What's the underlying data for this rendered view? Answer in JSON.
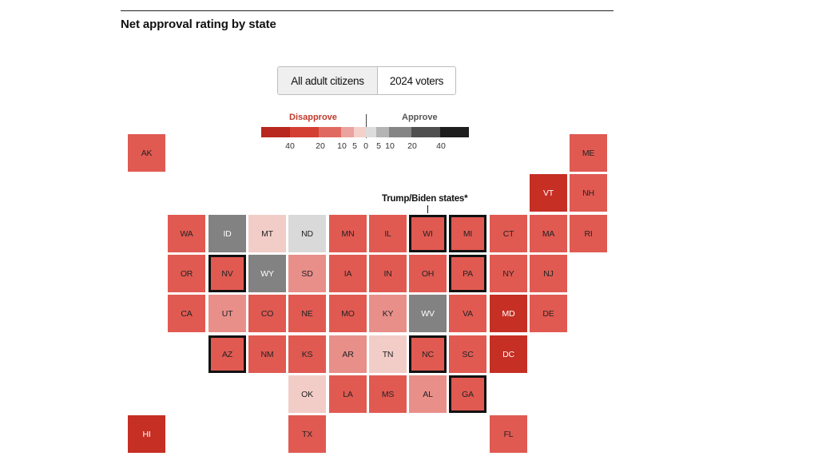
{
  "title": "Net approval rating by state",
  "toggle": {
    "options": [
      "All adult citizens",
      "2024 voters"
    ],
    "selected": "All adult citizens"
  },
  "legend": {
    "disapprove_label": "Disapprove",
    "approve_label": "Approve",
    "bins": [
      "#b8281e",
      "#d43f33",
      "#e06a62",
      "#eba39f",
      "#f4d0cb",
      "#dcdcdc",
      "#b4b4b4",
      "#858585",
      "#4f4f4f",
      "#1e1e1e"
    ],
    "ticks": [
      {
        "label": "40",
        "value": -40
      },
      {
        "label": "20",
        "value": -20
      },
      {
        "label": "10",
        "value": -10
      },
      {
        "label": "5",
        "value": -5
      },
      {
        "label": "0",
        "value": 0
      },
      {
        "label": "5",
        "value": 5
      },
      {
        "label": "10",
        "value": 10
      },
      {
        "label": "20",
        "value": 20
      },
      {
        "label": "40",
        "value": 40
      }
    ]
  },
  "annotation": "Trump/Biden states*",
  "chart_data": {
    "type": "heatmap",
    "title": "Net approval rating by state",
    "scale": "diverging, disapprove (red) to approve (gray/black)",
    "legend_breaks": [
      -40,
      -20,
      -10,
      -5,
      0,
      5,
      10,
      20,
      40
    ],
    "states": [
      {
        "abbr": "AK",
        "row": 0,
        "col": 0,
        "bin": "disapprove 10-20",
        "battleground": false
      },
      {
        "abbr": "ME",
        "row": 0,
        "col": 11,
        "bin": "disapprove 10-20",
        "battleground": false
      },
      {
        "abbr": "VT",
        "row": 1,
        "col": 10,
        "bin": "disapprove 20-40",
        "battleground": false
      },
      {
        "abbr": "NH",
        "row": 1,
        "col": 11,
        "bin": "disapprove 10-20",
        "battleground": false
      },
      {
        "abbr": "WA",
        "row": 2,
        "col": 1,
        "bin": "disapprove 10-20",
        "battleground": false
      },
      {
        "abbr": "ID",
        "row": 2,
        "col": 2,
        "bin": "approve 10-20",
        "battleground": false
      },
      {
        "abbr": "MT",
        "row": 2,
        "col": 3,
        "bin": "disapprove 0-5",
        "battleground": false
      },
      {
        "abbr": "ND",
        "row": 2,
        "col": 4,
        "bin": "approve 0-5",
        "battleground": false
      },
      {
        "abbr": "MN",
        "row": 2,
        "col": 5,
        "bin": "disapprove 10-20",
        "battleground": false
      },
      {
        "abbr": "IL",
        "row": 2,
        "col": 6,
        "bin": "disapprove 10-20",
        "battleground": false
      },
      {
        "abbr": "WI",
        "row": 2,
        "col": 7,
        "bin": "disapprove 10-20",
        "battleground": true
      },
      {
        "abbr": "MI",
        "row": 2,
        "col": 8,
        "bin": "disapprove 10-20",
        "battleground": true
      },
      {
        "abbr": "CT",
        "row": 2,
        "col": 9,
        "bin": "disapprove 10-20",
        "battleground": false
      },
      {
        "abbr": "MA",
        "row": 2,
        "col": 10,
        "bin": "disapprove 10-20",
        "battleground": false
      },
      {
        "abbr": "RI",
        "row": 2,
        "col": 11,
        "bin": "disapprove 10-20",
        "battleground": false
      },
      {
        "abbr": "OR",
        "row": 3,
        "col": 1,
        "bin": "disapprove 10-20",
        "battleground": false
      },
      {
        "abbr": "NV",
        "row": 3,
        "col": 2,
        "bin": "disapprove 10-20",
        "battleground": true
      },
      {
        "abbr": "WY",
        "row": 3,
        "col": 3,
        "bin": "approve 10-20",
        "battleground": false
      },
      {
        "abbr": "SD",
        "row": 3,
        "col": 4,
        "bin": "disapprove 5-10",
        "battleground": false
      },
      {
        "abbr": "IA",
        "row": 3,
        "col": 5,
        "bin": "disapprove 10-20",
        "battleground": false
      },
      {
        "abbr": "IN",
        "row": 3,
        "col": 6,
        "bin": "disapprove 10-20",
        "battleground": false
      },
      {
        "abbr": "OH",
        "row": 3,
        "col": 7,
        "bin": "disapprove 10-20",
        "battleground": false
      },
      {
        "abbr": "PA",
        "row": 3,
        "col": 8,
        "bin": "disapprove 10-20",
        "battleground": true
      },
      {
        "abbr": "NY",
        "row": 3,
        "col": 9,
        "bin": "disapprove 10-20",
        "battleground": false
      },
      {
        "abbr": "NJ",
        "row": 3,
        "col": 10,
        "bin": "disapprove 10-20",
        "battleground": false
      },
      {
        "abbr": "CA",
        "row": 4,
        "col": 1,
        "bin": "disapprove 10-20",
        "battleground": false
      },
      {
        "abbr": "UT",
        "row": 4,
        "col": 2,
        "bin": "disapprove 5-10",
        "battleground": false
      },
      {
        "abbr": "CO",
        "row": 4,
        "col": 3,
        "bin": "disapprove 10-20",
        "battleground": false
      },
      {
        "abbr": "NE",
        "row": 4,
        "col": 4,
        "bin": "disapprove 10-20",
        "battleground": false
      },
      {
        "abbr": "MO",
        "row": 4,
        "col": 5,
        "bin": "disapprove 10-20",
        "battleground": false
      },
      {
        "abbr": "KY",
        "row": 4,
        "col": 6,
        "bin": "disapprove 5-10",
        "battleground": false
      },
      {
        "abbr": "WV",
        "row": 4,
        "col": 7,
        "bin": "approve 10-20",
        "battleground": false
      },
      {
        "abbr": "VA",
        "row": 4,
        "col": 8,
        "bin": "disapprove 10-20",
        "battleground": false
      },
      {
        "abbr": "MD",
        "row": 4,
        "col": 9,
        "bin": "disapprove 20-40",
        "battleground": false
      },
      {
        "abbr": "DE",
        "row": 4,
        "col": 10,
        "bin": "disapprove 10-20",
        "battleground": false
      },
      {
        "abbr": "AZ",
        "row": 5,
        "col": 2,
        "bin": "disapprove 10-20",
        "battleground": true
      },
      {
        "abbr": "NM",
        "row": 5,
        "col": 3,
        "bin": "disapprove 10-20",
        "battleground": false
      },
      {
        "abbr": "KS",
        "row": 5,
        "col": 4,
        "bin": "disapprove 10-20",
        "battleground": false
      },
      {
        "abbr": "AR",
        "row": 5,
        "col": 5,
        "bin": "disapprove 5-10",
        "battleground": false
      },
      {
        "abbr": "TN",
        "row": 5,
        "col": 6,
        "bin": "disapprove 0-5",
        "battleground": false
      },
      {
        "abbr": "NC",
        "row": 5,
        "col": 7,
        "bin": "disapprove 10-20",
        "battleground": true
      },
      {
        "abbr": "SC",
        "row": 5,
        "col": 8,
        "bin": "disapprove 10-20",
        "battleground": false
      },
      {
        "abbr": "DC",
        "row": 5,
        "col": 9,
        "bin": "disapprove 20-40",
        "battleground": false
      },
      {
        "abbr": "OK",
        "row": 6,
        "col": 4,
        "bin": "disapprove 0-5",
        "battleground": false
      },
      {
        "abbr": "LA",
        "row": 6,
        "col": 5,
        "bin": "disapprove 10-20",
        "battleground": false
      },
      {
        "abbr": "MS",
        "row": 6,
        "col": 6,
        "bin": "disapprove 10-20",
        "battleground": false
      },
      {
        "abbr": "AL",
        "row": 6,
        "col": 7,
        "bin": "disapprove 5-10",
        "battleground": false
      },
      {
        "abbr": "GA",
        "row": 6,
        "col": 8,
        "bin": "disapprove 10-20",
        "battleground": true
      },
      {
        "abbr": "HI",
        "row": 7,
        "col": 0,
        "bin": "disapprove 20-40",
        "battleground": false
      },
      {
        "abbr": "TX",
        "row": 7,
        "col": 4,
        "bin": "disapprove 10-20",
        "battleground": false
      },
      {
        "abbr": "FL",
        "row": 7,
        "col": 9,
        "bin": "disapprove 10-20",
        "battleground": false
      }
    ]
  },
  "bin_colors": {
    "disapprove 20-40": "#c62f24",
    "disapprove 10-20": "#e05a52",
    "disapprove 5-10": "#e88f8a",
    "disapprove 0-5": "#f2cdc8",
    "approve 0-5": "#d9d9d9",
    "approve 10-20": "#828282"
  }
}
